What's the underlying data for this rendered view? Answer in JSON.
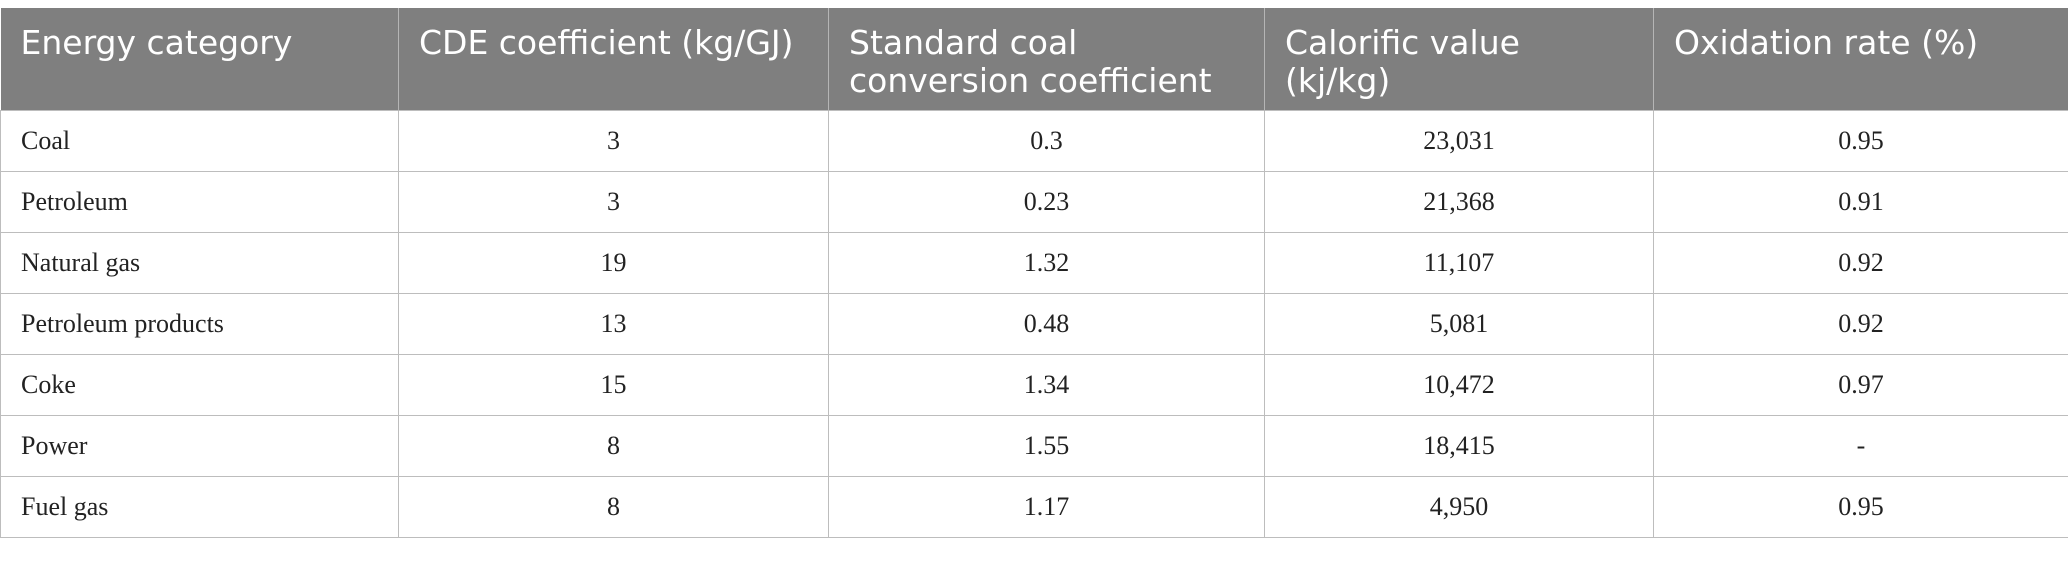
{
  "table": {
    "header": [
      "Energy category",
      "CDE coefficient (kg/GJ)",
      "Standard coal conversion coefficient",
      "Calorific value (kj/kg)",
      "Oxidation rate (%)"
    ],
    "rows": [
      [
        "Coal",
        "3",
        "0.3",
        "23,031",
        "0.95"
      ],
      [
        "Petroleum",
        "3",
        "0.23",
        "21,368",
        "0.91"
      ],
      [
        "Natural gas",
        "19",
        "1.32",
        "11,107",
        "0.92"
      ],
      [
        "Petroleum products",
        "13",
        "0.48",
        "5,081",
        "0.92"
      ],
      [
        "Coke",
        "15",
        "1.34",
        "10,472",
        "0.97"
      ],
      [
        "Power",
        "8",
        "1.55",
        "18,415",
        "-"
      ],
      [
        "Fuel gas",
        "8",
        "1.17",
        "4,950",
        "0.95"
      ]
    ]
  }
}
